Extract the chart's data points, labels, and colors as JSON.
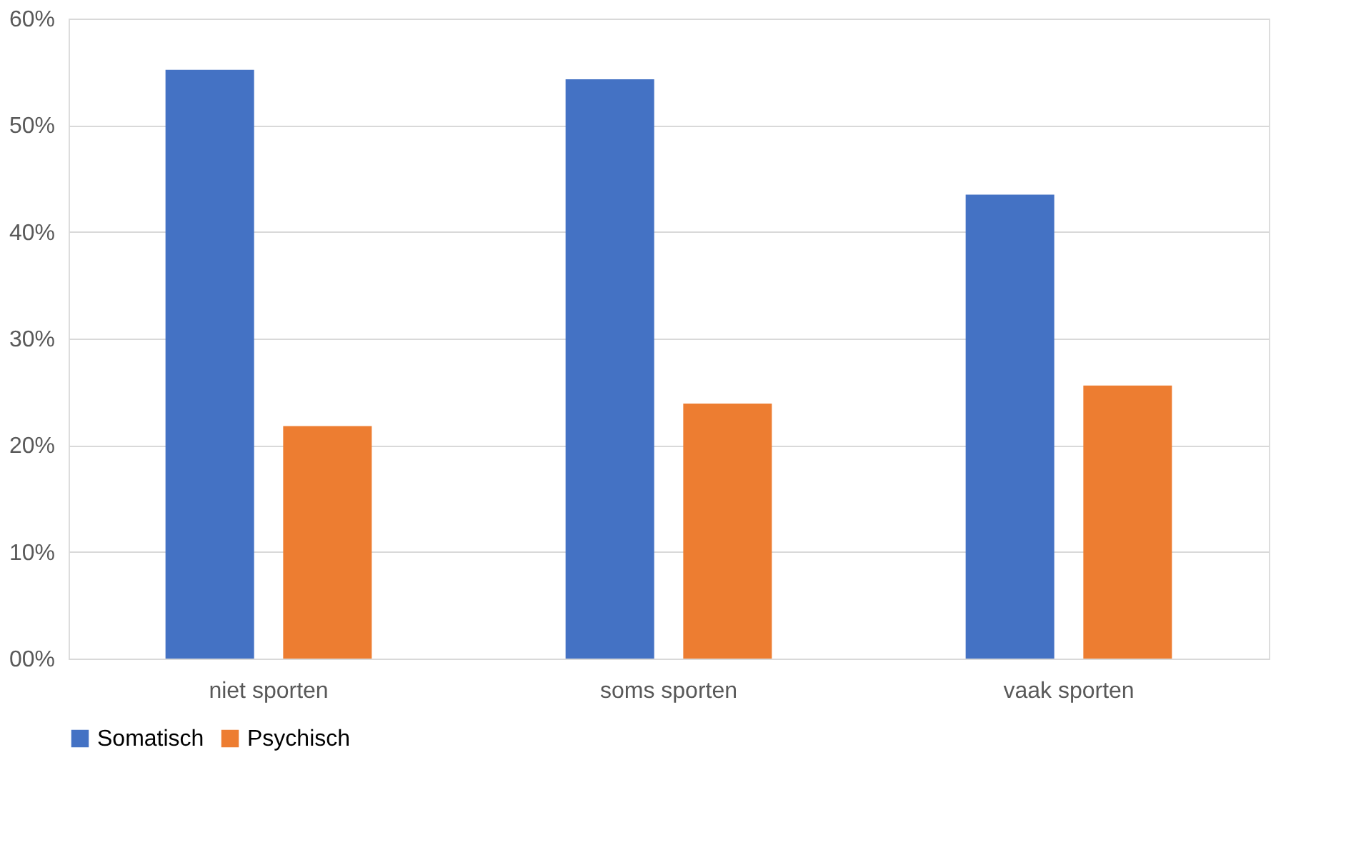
{
  "chart_data": {
    "type": "bar",
    "categories": [
      "niet sporten",
      "soms sporten",
      "vaak sporten"
    ],
    "series": [
      {
        "name": "Somatisch",
        "color": "#4472c4",
        "values": [
          55.2,
          54.3,
          43.5
        ]
      },
      {
        "name": "Psychisch",
        "color": "#ed7d31",
        "values": [
          21.8,
          23.9,
          25.6
        ]
      }
    ],
    "ylim": [
      0,
      60
    ],
    "yticks": [
      {
        "value": 0,
        "label": "00%"
      },
      {
        "value": 10,
        "label": "10%"
      },
      {
        "value": 20,
        "label": "20%"
      },
      {
        "value": 30,
        "label": "30%"
      },
      {
        "value": 40,
        "label": "40%"
      },
      {
        "value": 50,
        "label": "50%"
      },
      {
        "value": 60,
        "label": "60%"
      }
    ],
    "grid": "y",
    "legend": "bottom"
  }
}
